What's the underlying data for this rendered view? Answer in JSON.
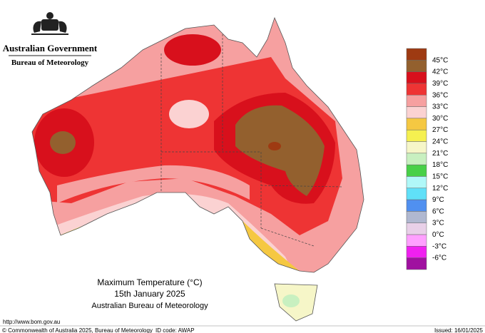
{
  "header": {
    "government": "Australian Government",
    "agency": "Bureau of Meteorology"
  },
  "title": {
    "main": "Maximum Temperature (°C)",
    "date": "15th January 2025",
    "source": "Australian Bureau of Meteorology"
  },
  "legend": {
    "colors": [
      "#9e3a12",
      "#93602e",
      "#d8101c",
      "#ee3434",
      "#f6a0a0",
      "#fbd2d2",
      "#f5c842",
      "#f5f050",
      "#f6f6c8",
      "#c8f0c0",
      "#48d048",
      "#b0f8f8",
      "#60e0f8",
      "#5090f0",
      "#b0b8d0",
      "#e8d0e8",
      "#ffa0ff",
      "#f020f0",
      "#a010a0"
    ],
    "labels": [
      "45°C",
      "42°C",
      "39°C",
      "36°C",
      "33°C",
      "30°C",
      "27°C",
      "24°C",
      "21°C",
      "18°C",
      "15°C",
      "12°C",
      "9°C",
      "6°C",
      "3°C",
      "0°C",
      "-3°C",
      "-6°C"
    ]
  },
  "footer": {
    "url": "http://www.bom.gov.au",
    "copyright": "© Commonwealth of Australia 2025, Bureau of Meteorology",
    "id_code": "ID code: AWAP",
    "issued": "Issued: 16/01/2025"
  }
}
